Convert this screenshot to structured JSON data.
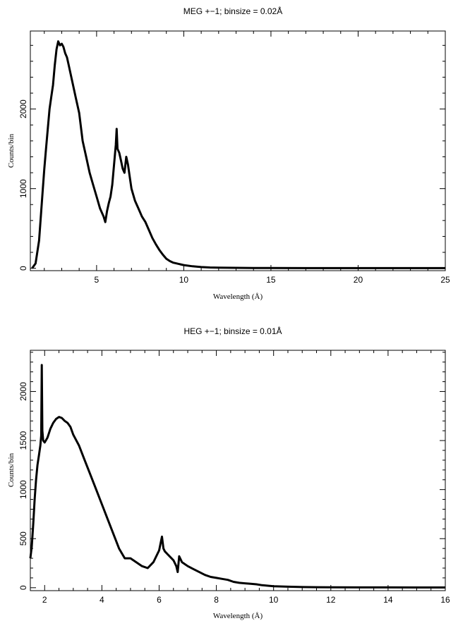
{
  "chart_data": [
    {
      "type": "line",
      "title": "MEG +−1; binsize = 0.02Å",
      "xlabel": "Wavelength (Å)",
      "ylabel": "Counts/bin",
      "xlim": [
        1.2,
        25
      ],
      "ylim": [
        -30,
        2980
      ],
      "xticks": [
        5,
        10,
        15,
        20,
        25
      ],
      "yticks": [
        0,
        1000,
        2000
      ],
      "ytick_labels": [
        "0",
        "1000",
        "2000"
      ],
      "x_minor_step": 1,
      "y_minor_step": 200,
      "series": [
        {
          "x": [
            1.3,
            1.5,
            1.7,
            1.9,
            2.0,
            2.1,
            2.2,
            2.3,
            2.4,
            2.5,
            2.6,
            2.7,
            2.8,
            2.9,
            3.0,
            3.1,
            3.2,
            3.3,
            3.4,
            3.6,
            3.8,
            4.0,
            4.2,
            4.4,
            4.6,
            4.8,
            5.0,
            5.2,
            5.4,
            5.5,
            5.6,
            5.7,
            5.8,
            5.9,
            6.0,
            6.1,
            6.15,
            6.2,
            6.3,
            6.4,
            6.5,
            6.6,
            6.7,
            6.8,
            6.9,
            7.0,
            7.2,
            7.4,
            7.6,
            7.8,
            8.0,
            8.2,
            8.4,
            8.6,
            8.8,
            9.0,
            9.2,
            9.4,
            9.6,
            9.8,
            10.0,
            10.5,
            11.0,
            11.5,
            12.0,
            13.0,
            14.0,
            15.0,
            17.0,
            20.0,
            22.0,
            25.0
          ],
          "y": [
            0,
            60,
            350,
            950,
            1250,
            1500,
            1750,
            2000,
            2150,
            2300,
            2550,
            2750,
            2850,
            2800,
            2820,
            2780,
            2700,
            2650,
            2550,
            2350,
            2150,
            1950,
            1600,
            1400,
            1200,
            1050,
            900,
            750,
            650,
            580,
            720,
            820,
            900,
            1050,
            1300,
            1550,
            1750,
            1500,
            1450,
            1350,
            1250,
            1200,
            1400,
            1300,
            1150,
            1000,
            850,
            750,
            650,
            580,
            480,
            380,
            300,
            230,
            170,
            120,
            90,
            70,
            60,
            50,
            40,
            25,
            15,
            10,
            8,
            5,
            4,
            3,
            2,
            2,
            2,
            2
          ]
        }
      ]
    },
    {
      "type": "line",
      "title": "HEG +−1; binsize = 0.01Å",
      "xlabel": "Wavelength (Å)",
      "ylabel": "Counts/bin",
      "xlim": [
        1.5,
        16
      ],
      "ylim": [
        -30,
        2420
      ],
      "xticks": [
        2,
        4,
        6,
        8,
        10,
        12,
        14,
        16
      ],
      "yticks": [
        0,
        500,
        1000,
        1500,
        2000
      ],
      "ytick_labels": [
        "0",
        "500",
        "1000",
        "1500",
        "2000"
      ],
      "x_minor_step": 0.5,
      "y_minor_step": 100,
      "series": [
        {
          "x": [
            1.5,
            1.55,
            1.6,
            1.65,
            1.7,
            1.75,
            1.8,
            1.85,
            1.88,
            1.9,
            1.92,
            1.95,
            2.0,
            2.1,
            2.2,
            2.3,
            2.4,
            2.5,
            2.6,
            2.7,
            2.8,
            2.9,
            3.0,
            3.2,
            3.4,
            3.6,
            3.8,
            4.0,
            4.2,
            4.4,
            4.6,
            4.8,
            5.0,
            5.2,
            5.4,
            5.6,
            5.8,
            6.0,
            6.1,
            6.15,
            6.2,
            6.3,
            6.5,
            6.6,
            6.65,
            6.7,
            6.8,
            7.0,
            7.2,
            7.4,
            7.6,
            7.8,
            8.0,
            8.2,
            8.4,
            8.6,
            8.8,
            9.0,
            9.2,
            9.4,
            9.6,
            9.8,
            10.0,
            10.5,
            11.0,
            11.5,
            12.0,
            13.0,
            14.0,
            15.0,
            16.0
          ],
          "y": [
            300,
            420,
            650,
            900,
            1100,
            1250,
            1350,
            1450,
            1550,
            2270,
            1600,
            1500,
            1480,
            1530,
            1620,
            1680,
            1720,
            1740,
            1730,
            1700,
            1680,
            1640,
            1560,
            1450,
            1300,
            1150,
            1000,
            850,
            700,
            550,
            400,
            300,
            300,
            260,
            220,
            200,
            260,
            380,
            520,
            400,
            370,
            340,
            280,
            220,
            160,
            320,
            260,
            220,
            190,
            160,
            130,
            110,
            100,
            90,
            80,
            60,
            50,
            45,
            40,
            35,
            25,
            20,
            15,
            10,
            7,
            5,
            4,
            3,
            3,
            2,
            2
          ]
        }
      ]
    }
  ]
}
